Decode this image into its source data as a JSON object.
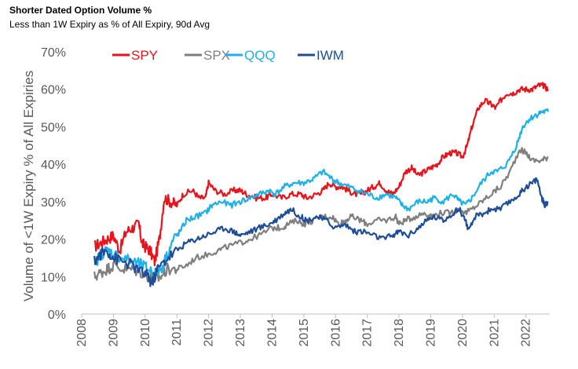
{
  "chart_data": {
    "type": "line",
    "title": "Shorter Dated Option Volume %",
    "subtitle": "Less than 1W Expiry as % of All Expiry, 90d Avg",
    "ylabel": "Volume of <1W Expiry % of All Expiries",
    "xlabel": "",
    "ylim": [
      0,
      70
    ],
    "xlim": [
      2008,
      2022.75
    ],
    "x_ticks": [
      "2008",
      "2009",
      "2010",
      "2011",
      "2012",
      "2013",
      "2014",
      "2015",
      "2016",
      "2017",
      "2018",
      "2019",
      "2020",
      "2021",
      "2022"
    ],
    "y_ticks": [
      "0%",
      "10%",
      "20%",
      "30%",
      "40%",
      "50%",
      "60%",
      "70%"
    ],
    "grid": false,
    "legend_position": "top",
    "series": [
      {
        "name": "SPY",
        "color": "#e8131b",
        "points": [
          [
            2008.4,
            18
          ],
          [
            2008.6,
            19
          ],
          [
            2008.8,
            20
          ],
          [
            2009.0,
            21
          ],
          [
            2009.2,
            17
          ],
          [
            2009.4,
            22
          ],
          [
            2009.6,
            23
          ],
          [
            2009.8,
            24
          ],
          [
            2009.9,
            19
          ],
          [
            2010.0,
            18
          ],
          [
            2010.15,
            17
          ],
          [
            2010.3,
            14
          ],
          [
            2010.45,
            20
          ],
          [
            2010.6,
            31
          ],
          [
            2010.8,
            30
          ],
          [
            2011.0,
            29
          ],
          [
            2011.2,
            32
          ],
          [
            2011.5,
            33
          ],
          [
            2011.7,
            31
          ],
          [
            2011.9,
            31
          ],
          [
            2012.0,
            35
          ],
          [
            2012.2,
            33
          ],
          [
            2012.5,
            32
          ],
          [
            2012.8,
            33
          ],
          [
            2013.0,
            33
          ],
          [
            2013.2,
            32
          ],
          [
            2013.5,
            31
          ],
          [
            2013.8,
            31
          ],
          [
            2014.0,
            32
          ],
          [
            2014.3,
            31
          ],
          [
            2014.6,
            32
          ],
          [
            2014.9,
            32
          ],
          [
            2015.1,
            31
          ],
          [
            2015.4,
            32
          ],
          [
            2015.6,
            33
          ],
          [
            2015.8,
            35
          ],
          [
            2016.0,
            34
          ],
          [
            2016.2,
            34
          ],
          [
            2016.4,
            33
          ],
          [
            2016.6,
            32
          ],
          [
            2016.8,
            32
          ],
          [
            2017.0,
            33
          ],
          [
            2017.2,
            34
          ],
          [
            2017.4,
            35
          ],
          [
            2017.6,
            33
          ],
          [
            2017.8,
            32
          ],
          [
            2018.0,
            34
          ],
          [
            2018.2,
            38
          ],
          [
            2018.4,
            39
          ],
          [
            2018.6,
            37
          ],
          [
            2018.8,
            38
          ],
          [
            2019.0,
            39
          ],
          [
            2019.2,
            40
          ],
          [
            2019.4,
            42
          ],
          [
            2019.6,
            43
          ],
          [
            2019.8,
            43
          ],
          [
            2020.0,
            42
          ],
          [
            2020.15,
            45
          ],
          [
            2020.3,
            50
          ],
          [
            2020.5,
            55
          ],
          [
            2020.7,
            57
          ],
          [
            2020.9,
            56
          ],
          [
            2021.05,
            55
          ],
          [
            2021.2,
            57
          ],
          [
            2021.4,
            59
          ],
          [
            2021.6,
            59
          ],
          [
            2021.8,
            60
          ],
          [
            2022.0,
            60
          ],
          [
            2022.2,
            60
          ],
          [
            2022.4,
            61
          ],
          [
            2022.55,
            61
          ],
          [
            2022.7,
            60
          ]
        ]
      },
      {
        "name": "SPX",
        "color": "#7f7f7f",
        "points": [
          [
            2008.4,
            10
          ],
          [
            2008.6,
            11
          ],
          [
            2008.8,
            12
          ],
          [
            2009.0,
            13
          ],
          [
            2009.3,
            12
          ],
          [
            2009.6,
            12
          ],
          [
            2009.9,
            11
          ],
          [
            2010.1,
            10
          ],
          [
            2010.3,
            9
          ],
          [
            2010.5,
            10
          ],
          [
            2010.7,
            12
          ],
          [
            2011.0,
            12
          ],
          [
            2011.3,
            13
          ],
          [
            2011.6,
            15
          ],
          [
            2012.0,
            16
          ],
          [
            2012.3,
            17
          ],
          [
            2012.6,
            18
          ],
          [
            2013.0,
            19
          ],
          [
            2013.3,
            20
          ],
          [
            2013.6,
            21
          ],
          [
            2014.0,
            23
          ],
          [
            2014.3,
            23
          ],
          [
            2014.5,
            24
          ],
          [
            2014.8,
            25
          ],
          [
            2015.0,
            24
          ],
          [
            2015.3,
            25
          ],
          [
            2015.6,
            26
          ],
          [
            2015.9,
            26
          ],
          [
            2016.1,
            24
          ],
          [
            2016.3,
            25
          ],
          [
            2016.5,
            26
          ],
          [
            2016.8,
            25
          ],
          [
            2017.0,
            24
          ],
          [
            2017.3,
            25
          ],
          [
            2017.6,
            25
          ],
          [
            2017.9,
            26
          ],
          [
            2018.0,
            24
          ],
          [
            2018.2,
            25
          ],
          [
            2018.5,
            26
          ],
          [
            2018.8,
            27
          ],
          [
            2019.0,
            26
          ],
          [
            2019.3,
            27
          ],
          [
            2019.6,
            27
          ],
          [
            2019.9,
            28
          ],
          [
            2020.1,
            27
          ],
          [
            2020.3,
            28
          ],
          [
            2020.6,
            30
          ],
          [
            2020.9,
            32
          ],
          [
            2021.2,
            34
          ],
          [
            2021.5,
            38
          ],
          [
            2021.8,
            44
          ],
          [
            2022.0,
            43
          ],
          [
            2022.2,
            41
          ],
          [
            2022.5,
            41
          ],
          [
            2022.7,
            42
          ]
        ]
      },
      {
        "name": "QQQ",
        "color": "#1fb0e8",
        "points": [
          [
            2008.4,
            13
          ],
          [
            2008.6,
            16
          ],
          [
            2008.8,
            17
          ],
          [
            2009.0,
            16
          ],
          [
            2009.3,
            15
          ],
          [
            2009.6,
            14
          ],
          [
            2009.9,
            13
          ],
          [
            2010.1,
            12
          ],
          [
            2010.3,
            11
          ],
          [
            2010.5,
            12
          ],
          [
            2010.7,
            16
          ],
          [
            2010.9,
            20
          ],
          [
            2011.1,
            22
          ],
          [
            2011.3,
            25
          ],
          [
            2011.6,
            26
          ],
          [
            2011.9,
            27
          ],
          [
            2012.1,
            29
          ],
          [
            2012.4,
            30
          ],
          [
            2012.7,
            29
          ],
          [
            2013.0,
            30
          ],
          [
            2013.3,
            31
          ],
          [
            2013.6,
            32
          ],
          [
            2013.9,
            33
          ],
          [
            2014.1,
            32
          ],
          [
            2014.4,
            34
          ],
          [
            2014.7,
            35
          ],
          [
            2015.0,
            35
          ],
          [
            2015.3,
            36
          ],
          [
            2015.6,
            38
          ],
          [
            2015.9,
            36
          ],
          [
            2016.1,
            35
          ],
          [
            2016.4,
            34
          ],
          [
            2016.7,
            33
          ],
          [
            2017.0,
            32
          ],
          [
            2017.3,
            31
          ],
          [
            2017.6,
            32
          ],
          [
            2017.9,
            31
          ],
          [
            2018.1,
            29
          ],
          [
            2018.3,
            28
          ],
          [
            2018.6,
            30
          ],
          [
            2018.9,
            30
          ],
          [
            2019.1,
            31
          ],
          [
            2019.4,
            30
          ],
          [
            2019.7,
            32
          ],
          [
            2019.9,
            30
          ],
          [
            2020.1,
            29
          ],
          [
            2020.3,
            31
          ],
          [
            2020.6,
            35
          ],
          [
            2020.9,
            38
          ],
          [
            2021.1,
            38
          ],
          [
            2021.4,
            40
          ],
          [
            2021.7,
            45
          ],
          [
            2021.9,
            50
          ],
          [
            2022.1,
            52
          ],
          [
            2022.3,
            53
          ],
          [
            2022.5,
            54
          ],
          [
            2022.7,
            54
          ]
        ]
      },
      {
        "name": "IWM",
        "color": "#1f4e99",
        "points": [
          [
            2008.4,
            14
          ],
          [
            2008.6,
            16
          ],
          [
            2008.8,
            17
          ],
          [
            2009.0,
            15
          ],
          [
            2009.3,
            14
          ],
          [
            2009.6,
            13
          ],
          [
            2009.9,
            11
          ],
          [
            2010.1,
            10
          ],
          [
            2010.2,
            8
          ],
          [
            2010.4,
            12
          ],
          [
            2010.7,
            15
          ],
          [
            2011.0,
            17
          ],
          [
            2011.3,
            19
          ],
          [
            2011.6,
            20
          ],
          [
            2011.9,
            21
          ],
          [
            2012.2,
            22
          ],
          [
            2012.5,
            23
          ],
          [
            2012.8,
            22
          ],
          [
            2013.0,
            21
          ],
          [
            2013.3,
            22
          ],
          [
            2013.6,
            23
          ],
          [
            2013.9,
            24
          ],
          [
            2014.1,
            25
          ],
          [
            2014.4,
            27
          ],
          [
            2014.6,
            28
          ],
          [
            2014.9,
            26
          ],
          [
            2015.1,
            25
          ],
          [
            2015.4,
            26
          ],
          [
            2015.7,
            25
          ],
          [
            2016.0,
            23
          ],
          [
            2016.3,
            24
          ],
          [
            2016.6,
            22
          ],
          [
            2016.9,
            22
          ],
          [
            2017.2,
            21
          ],
          [
            2017.5,
            20
          ],
          [
            2017.8,
            21
          ],
          [
            2018.0,
            22
          ],
          [
            2018.3,
            21
          ],
          [
            2018.6,
            23
          ],
          [
            2018.9,
            25
          ],
          [
            2019.1,
            26
          ],
          [
            2019.4,
            25
          ],
          [
            2019.7,
            27
          ],
          [
            2019.9,
            28
          ],
          [
            2020.1,
            25
          ],
          [
            2020.2,
            22
          ],
          [
            2020.4,
            26
          ],
          [
            2020.7,
            27
          ],
          [
            2020.9,
            28
          ],
          [
            2021.2,
            28
          ],
          [
            2021.5,
            30
          ],
          [
            2021.8,
            32
          ],
          [
            2022.0,
            34
          ],
          [
            2022.2,
            35
          ],
          [
            2022.35,
            36
          ],
          [
            2022.5,
            31
          ],
          [
            2022.6,
            29
          ],
          [
            2022.7,
            30
          ]
        ]
      }
    ]
  }
}
